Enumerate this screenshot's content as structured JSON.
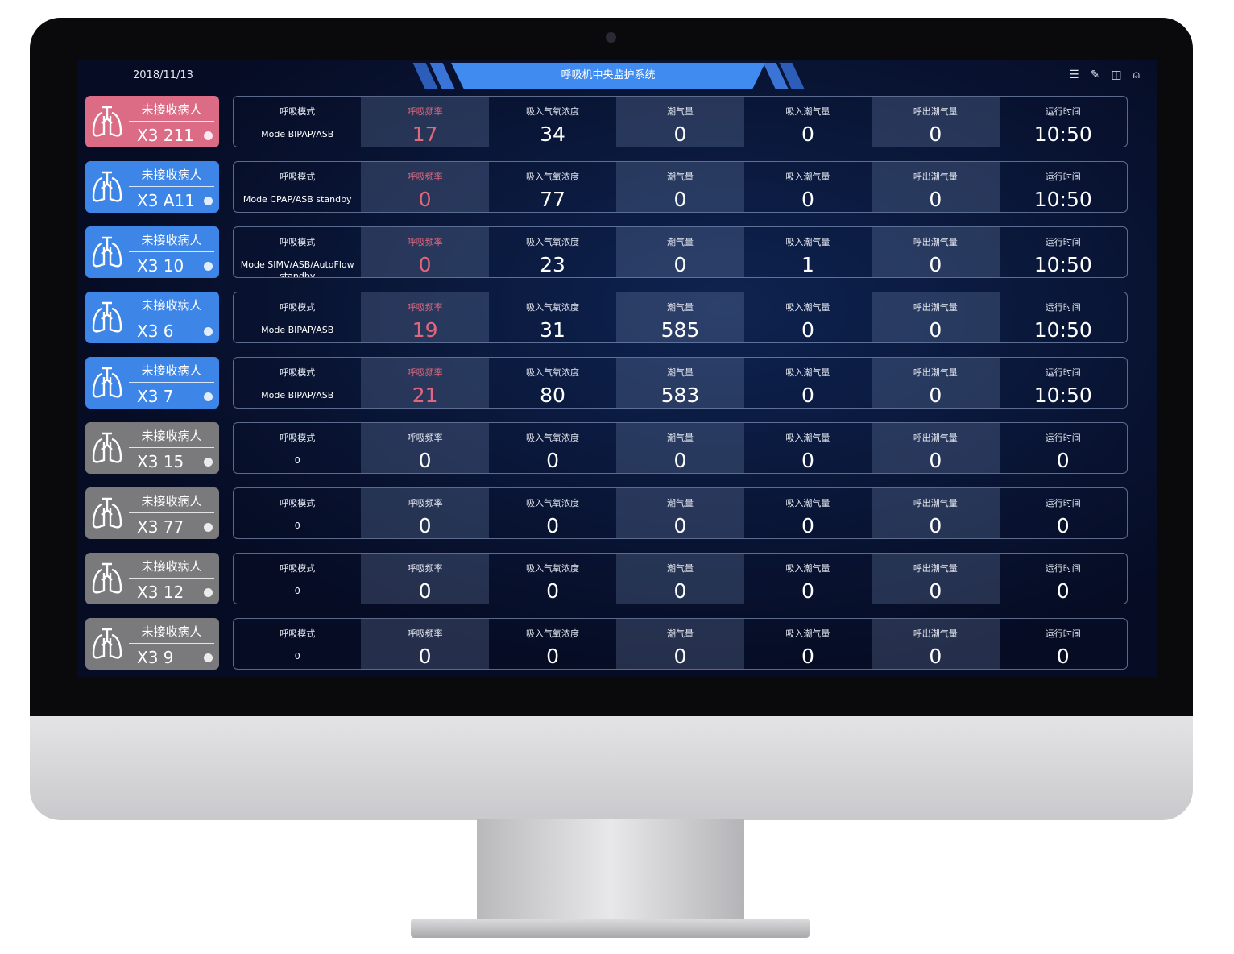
{
  "header": {
    "date": "2018/11/13",
    "title": "呼吸机中央监护系统",
    "icons": [
      "list-icon",
      "edit-icon",
      "layout-icon",
      "user-icon"
    ]
  },
  "colors": {
    "alert": "#dc6b85",
    "active": "#3d86e8",
    "idle": "#7a7a7c",
    "alert_text": "#e0677d"
  },
  "labels": [
    "呼吸模式",
    "呼吸频率",
    "吸入气氧浓度",
    "潮气量",
    "吸入潮气量",
    "呼出潮气量",
    "运行时间"
  ],
  "rows": [
    {
      "status": "未接收病人",
      "bed": "X3 211",
      "state": "alert",
      "mode": "Mode BIPAP/ASB",
      "values": [
        "17",
        "34",
        "0",
        "0",
        "0",
        "10:50"
      ]
    },
    {
      "status": "未接收病人",
      "bed": "X3 A11",
      "state": "active",
      "mode": "Mode CPAP/ASB standby",
      "values": [
        "0",
        "77",
        "0",
        "0",
        "0",
        "10:50"
      ]
    },
    {
      "status": "未接收病人",
      "bed": "X3 10",
      "state": "active",
      "mode": "Mode SIMV/ASB/AutoFlow standby",
      "values": [
        "0",
        "23",
        "0",
        "1",
        "0",
        "10:50"
      ]
    },
    {
      "status": "未接收病人",
      "bed": "X3 6",
      "state": "active",
      "mode": "Mode BIPAP/ASB",
      "values": [
        "19",
        "31",
        "585",
        "0",
        "0",
        "10:50"
      ]
    },
    {
      "status": "未接收病人",
      "bed": "X3 7",
      "state": "active",
      "mode": "Mode BIPAP/ASB",
      "values": [
        "21",
        "80",
        "583",
        "0",
        "0",
        "10:50"
      ]
    },
    {
      "status": "未接收病人",
      "bed": "X3 15",
      "state": "idle",
      "mode": "0",
      "values": [
        "0",
        "0",
        "0",
        "0",
        "0",
        "0"
      ]
    },
    {
      "status": "未接收病人",
      "bed": "X3 77",
      "state": "idle",
      "mode": "0",
      "values": [
        "0",
        "0",
        "0",
        "0",
        "0",
        "0"
      ]
    },
    {
      "status": "未接收病人",
      "bed": "X3 12",
      "state": "idle",
      "mode": "0",
      "values": [
        "0",
        "0",
        "0",
        "0",
        "0",
        "0"
      ]
    },
    {
      "status": "未接收病人",
      "bed": "X3 9",
      "state": "idle",
      "mode": "0",
      "values": [
        "0",
        "0",
        "0",
        "0",
        "0",
        "0"
      ]
    }
  ]
}
